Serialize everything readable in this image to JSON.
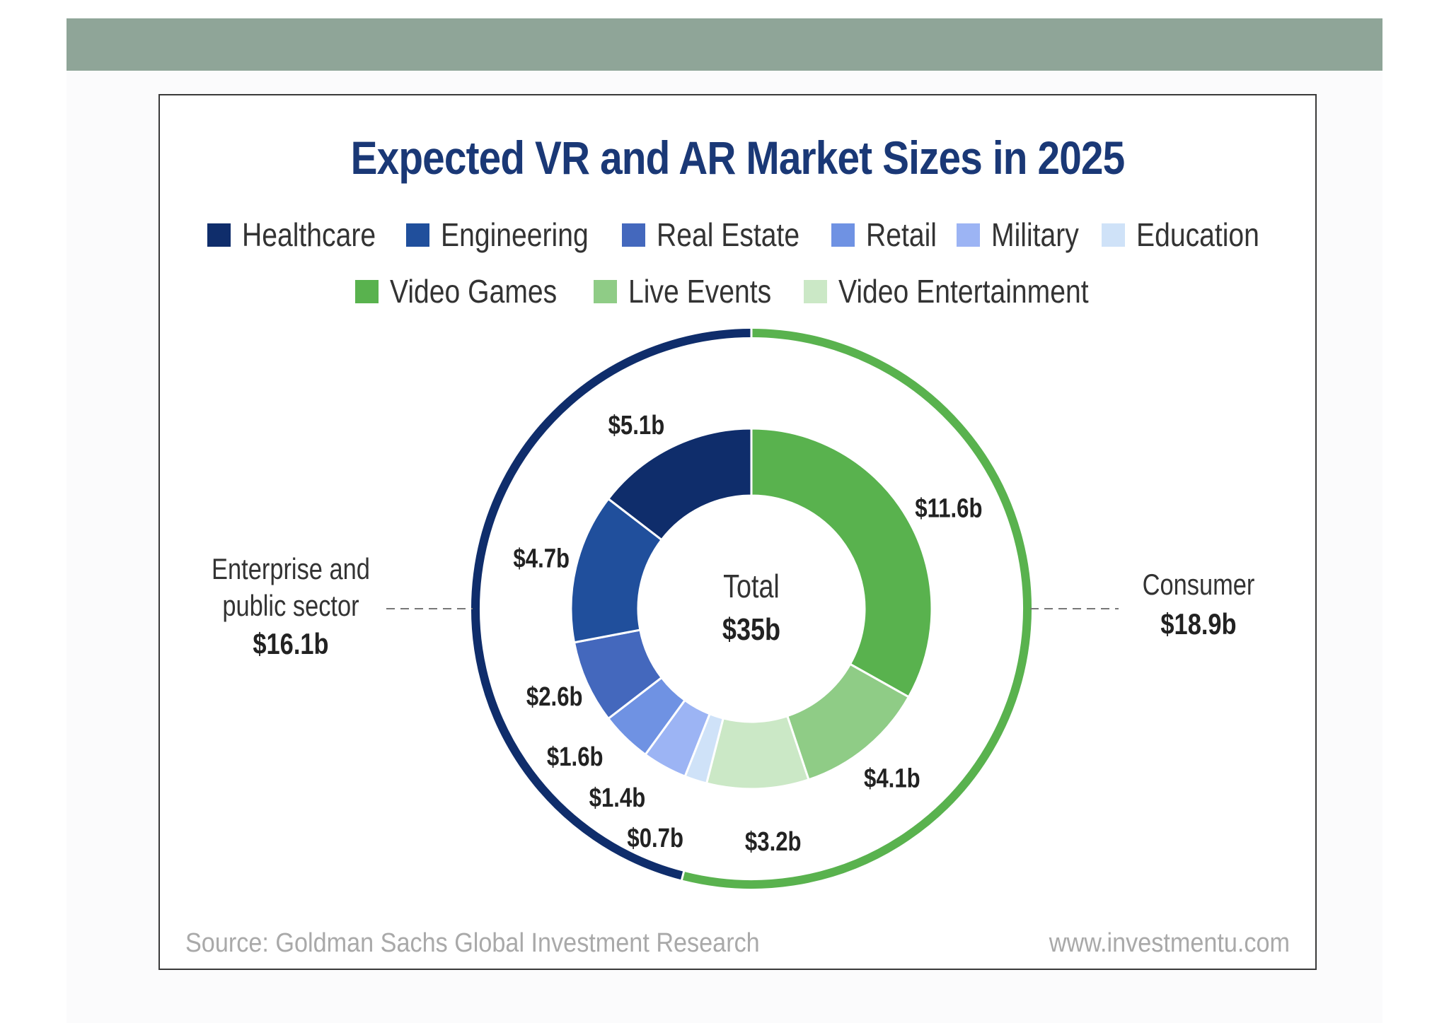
{
  "chart_data": {
    "type": "donut",
    "title": "Expected VR and AR Market Sizes in 2025",
    "legend": [
      {
        "name": "Healthcare",
        "color": "#0f2d6b"
      },
      {
        "name": "Engineering",
        "color": "#204f9c"
      },
      {
        "name": "Real Estate",
        "color": "#4468bd"
      },
      {
        "name": "Retail",
        "color": "#6f92e3"
      },
      {
        "name": "Military",
        "color": "#9cb4f4"
      },
      {
        "name": "Education",
        "color": "#cfe2f8"
      },
      {
        "name": "Video Games",
        "color": "#59b24e"
      },
      {
        "name": "Live Events",
        "color": "#8fcc86"
      },
      {
        "name": "Video Entertainment",
        "color": "#cbe8c6"
      }
    ],
    "inner_series": [
      {
        "name": "Video Games",
        "value": 11.6,
        "label": "$11.6b"
      },
      {
        "name": "Live Events",
        "value": 4.1,
        "label": "$4.1b"
      },
      {
        "name": "Video Entertainment",
        "value": 3.2,
        "label": "$3.2b"
      },
      {
        "name": "Education",
        "value": 0.7,
        "label": "$0.7b"
      },
      {
        "name": "Military",
        "value": 1.4,
        "label": "$1.4b"
      },
      {
        "name": "Retail",
        "value": 1.6,
        "label": "$1.6b"
      },
      {
        "name": "Real Estate",
        "value": 2.6,
        "label": "$2.6b"
      },
      {
        "name": "Engineering",
        "value": 4.7,
        "label": "$4.7b"
      },
      {
        "name": "Healthcare",
        "value": 5.1,
        "label": "$5.1b"
      }
    ],
    "outer_series": [
      {
        "name": "Consumer",
        "value": 18.9,
        "label": "$18.9b",
        "color": "#59b24e"
      },
      {
        "name": "Enterprise and public sector",
        "value": 16.1,
        "label": "$16.1b",
        "color": "#0f2d6b"
      }
    ],
    "center": {
      "title": "Total",
      "value_label": "$35b"
    },
    "annotations": {
      "enterprise": {
        "line1": "Enterprise and",
        "line2": "public sector",
        "value": "$16.1b"
      },
      "consumer": {
        "line1": "Consumer",
        "value": "$18.9b"
      }
    }
  },
  "footer": {
    "source": "Source: Goldman Sachs Global Investment Research",
    "site": "www.investmentu.com"
  }
}
